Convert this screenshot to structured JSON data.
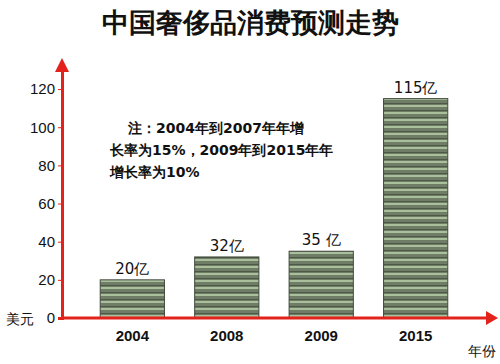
{
  "chart_data": {
    "type": "bar",
    "title": "中国奢侈品消费预测走势",
    "annotation": [
      "注：2004年到2007年年增",
      "长率为15%，2009年到2015年年",
      "增长率为10%"
    ],
    "y_label": "美元",
    "x_label": "年份",
    "categories": [
      "2004",
      "2008",
      "2009",
      "2015"
    ],
    "values": [
      20,
      32,
      35,
      115
    ],
    "value_labels": [
      "20亿",
      "32亿",
      "35 亿",
      "115亿"
    ],
    "data_labels": true,
    "color": "#6f7d66",
    "ylim": [
      0,
      130
    ],
    "yticks": [
      0,
      20,
      40,
      60,
      80,
      100,
      120
    ],
    "grid": false
  }
}
